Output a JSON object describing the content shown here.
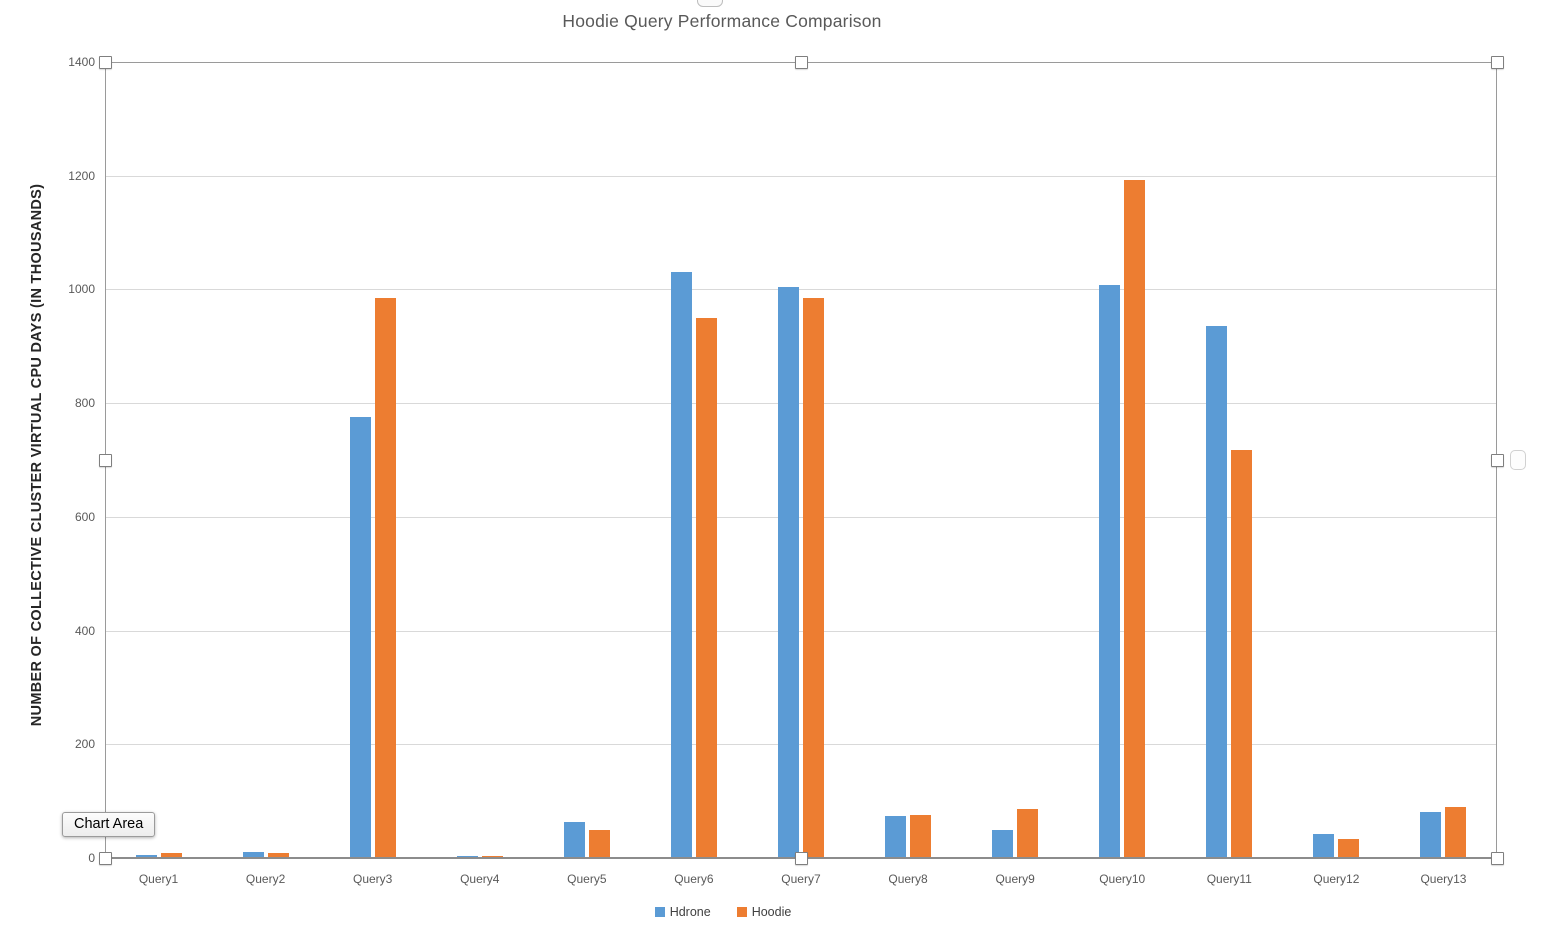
{
  "tooltip": {
    "label": "Chart Area"
  },
  "chart_data": {
    "type": "bar",
    "title": "Hoodie Query Performance Comparison",
    "xlabel": "",
    "ylabel": "NUMBER OF COLLECTIVE CLUSTER VIRTUAL CPU DAYS (IN THOUSANDS)",
    "ylim": [
      0,
      1400
    ],
    "yticks": [
      0,
      200,
      400,
      600,
      800,
      1000,
      1200,
      1400
    ],
    "grid": true,
    "legend_position": "bottom",
    "categories": [
      "Query1",
      "Query2",
      "Query3",
      "Query4",
      "Query5",
      "Query6",
      "Query7",
      "Query8",
      "Query9",
      "Query10",
      "Query11",
      "Query12",
      "Query13"
    ],
    "series": [
      {
        "name": "Hdrone",
        "color": "#5B9BD5",
        "values": [
          5,
          10,
          775,
          4,
          63,
          1030,
          1005,
          74,
          50,
          1008,
          935,
          42,
          81
        ]
      },
      {
        "name": "Hoodie",
        "color": "#ED7D31",
        "values": [
          8,
          9,
          985,
          4,
          50,
          950,
          985,
          75,
          86,
          1193,
          718,
          33,
          90
        ]
      }
    ]
  },
  "selection": {
    "state": "plot-area-selected",
    "handles": [
      "top-left",
      "top-center",
      "top-right",
      "mid-left",
      "mid-right",
      "bottom-left",
      "bottom-center",
      "bottom-right"
    ]
  }
}
